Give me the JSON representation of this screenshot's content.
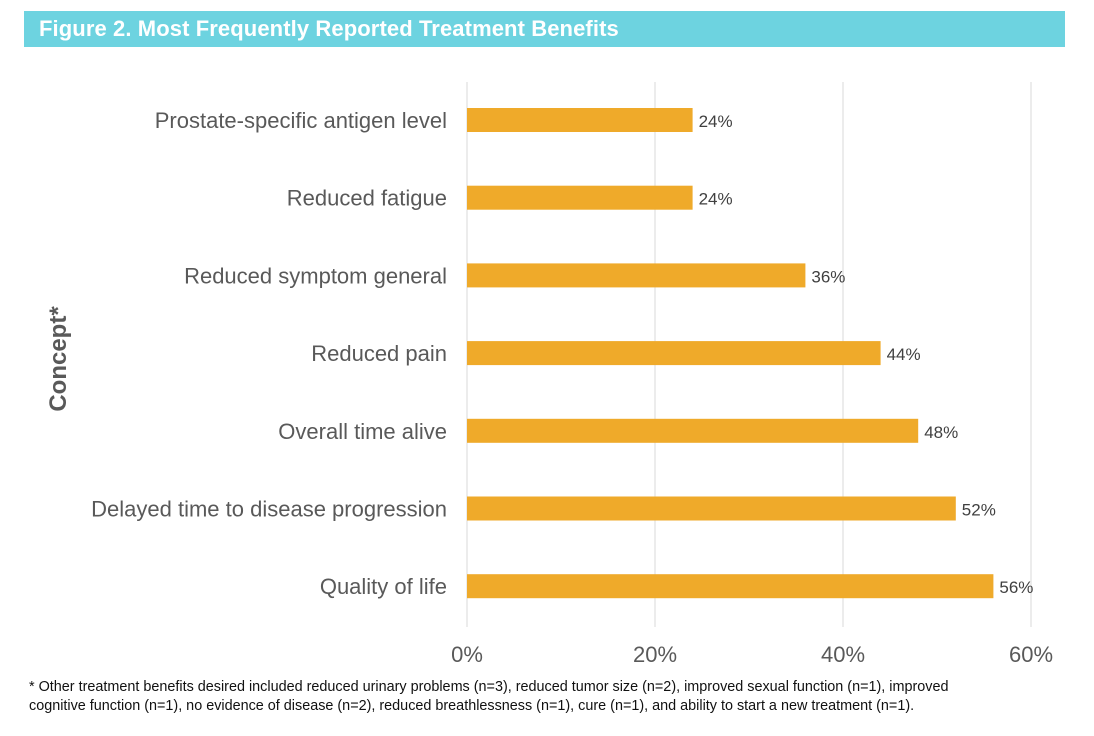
{
  "figure": {
    "title": "Figure 2. Most Frequently Reported Treatment Benefits"
  },
  "colors": {
    "banner": "#6dd3e0",
    "bar": "#efaa2a",
    "gridline": "#d9d9d9",
    "label_text": "#595959",
    "title_text": "#ffffff"
  },
  "chart_data": {
    "type": "bar",
    "orientation": "horizontal",
    "ylabel": "Concept*",
    "xlabel": "",
    "categories": [
      "Prostate-specific antigen level",
      "Reduced fatigue",
      "Reduced symptom general",
      "Reduced pain",
      "Overall time alive",
      "Delayed time to disease progression",
      "Quality of life"
    ],
    "values": [
      24,
      24,
      36,
      44,
      48,
      52,
      56
    ],
    "value_labels": [
      "24%",
      "24%",
      "36%",
      "44%",
      "48%",
      "52%",
      "56%"
    ],
    "xlim": [
      0,
      60
    ],
    "xticks": [
      0,
      20,
      40,
      60
    ],
    "xtick_labels": [
      "0%",
      "20%",
      "40%",
      "60%"
    ],
    "grid": "vertical",
    "legend": "none"
  },
  "footnote": {
    "line1": "* Other treatment benefits desired included reduced urinary problems (n=3), reduced tumor size (n=2), improved sexual function (n=1), improved",
    "line2": "cognitive function (n=1), no evidence of disease (n=2), reduced breathlessness (n=1), cure (n=1), and ability to start a new treatment (n=1)."
  }
}
